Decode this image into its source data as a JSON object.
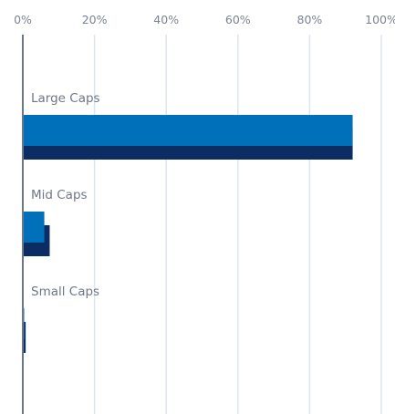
{
  "chart_data": {
    "type": "bar",
    "orientation": "horizontal",
    "categories": [
      "Large Caps",
      "Mid Caps",
      "Small Caps"
    ],
    "series": [
      {
        "values": [
          92,
          6,
          0.3
        ],
        "color": "#0070bb"
      },
      {
        "values": [
          92,
          7.5,
          0.8
        ],
        "color": "#0b2d63"
      }
    ],
    "xlim": [
      0,
      100
    ],
    "x_ticks": [
      "0%",
      "20%",
      "40%",
      "60%",
      "80%",
      "100%"
    ],
    "x_tick_values": [
      0,
      20,
      40,
      60,
      80,
      100
    ],
    "x_axis_position": "top",
    "grid": true,
    "legend": "none",
    "colors": {
      "grid": "#dde5ed",
      "axis": "#6b7686"
    }
  }
}
